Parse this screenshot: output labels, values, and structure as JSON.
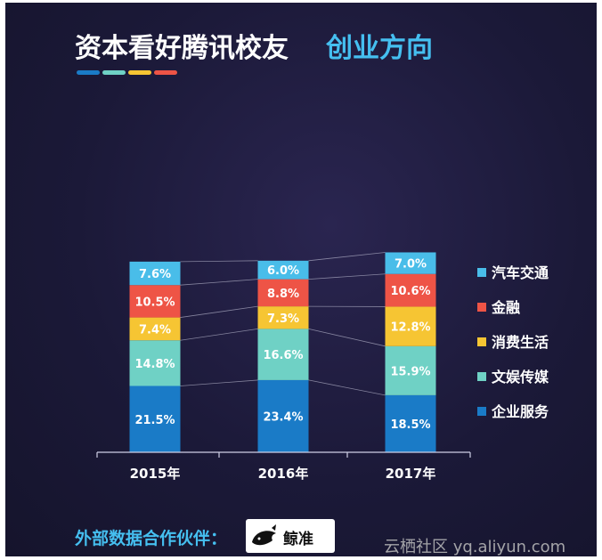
{
  "colors": {
    "qiye": "#1a7bc7",
    "wenyu": "#6fd1c5",
    "xiaofei": "#f6c533",
    "jinrong": "#ee5446",
    "qiche": "#49bde9",
    "axis": "#cfcfe6",
    "accent": "#45bff0",
    "connector": "#c8c8dc"
  },
  "chart_data": {
    "type": "bar",
    "stacked": true,
    "title": "资本看好腾讯校友",
    "title_accent": "创业方向",
    "categories": [
      "2015年",
      "2016年",
      "2017年"
    ],
    "series": [
      {
        "name": "企业服务",
        "values": [
          21.5,
          23.4,
          18.5
        ],
        "labels": [
          "21.5%",
          "23.4%",
          "18.5%"
        ],
        "color_key": "qiye"
      },
      {
        "name": "文娱传媒",
        "values": [
          14.8,
          16.6,
          15.9
        ],
        "labels": [
          "14.8%",
          "16.6%",
          "15.9%"
        ],
        "color_key": "wenyu"
      },
      {
        "name": "消费生活",
        "values": [
          7.4,
          7.3,
          12.8
        ],
        "labels": [
          "7.4%",
          "7.3%",
          "12.8%"
        ],
        "color_key": "xiaofei"
      },
      {
        "name": "金融",
        "values": [
          10.5,
          8.8,
          10.6
        ],
        "labels": [
          "10.5%",
          "8.8%",
          "10.6%"
        ],
        "color_key": "jinrong"
      },
      {
        "name": "汽车交通",
        "values": [
          7.6,
          6.0,
          7.0
        ],
        "labels": [
          "7.6%",
          "6.0%",
          "7.0%"
        ],
        "color_key": "qiche"
      }
    ],
    "legend_order": [
      "汽车交通",
      "金融",
      "消费生活",
      "文娱传媒",
      "企业服务"
    ],
    "legend_position": "right"
  },
  "footer": {
    "partner_label": "外部数据合作伙伴：",
    "partner_name": "鲸准",
    "watermark": "云栖社区 yq.aliyun.com"
  }
}
